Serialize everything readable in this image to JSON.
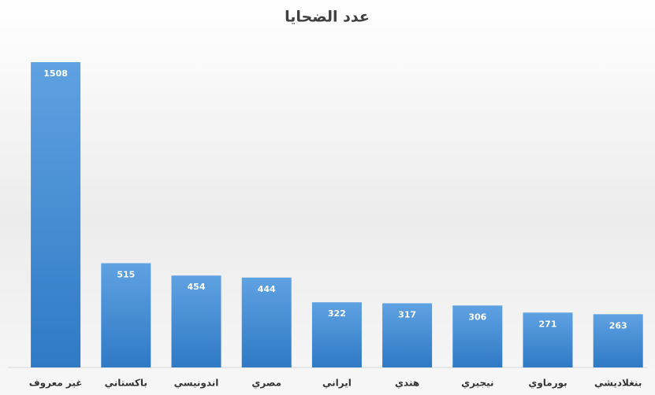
{
  "chart_data": {
    "type": "bar",
    "title": "عدد الضحايا",
    "categories": [
      "غير معروف",
      "باكستاني",
      "اندونيسي",
      "مصري",
      "ايراني",
      "هندي",
      "نيجيري",
      "بورماوي",
      "بنغلاديشي"
    ],
    "values": [
      1508,
      515,
      454,
      444,
      322,
      317,
      306,
      271,
      263
    ],
    "color": "#4a8fd6"
  }
}
